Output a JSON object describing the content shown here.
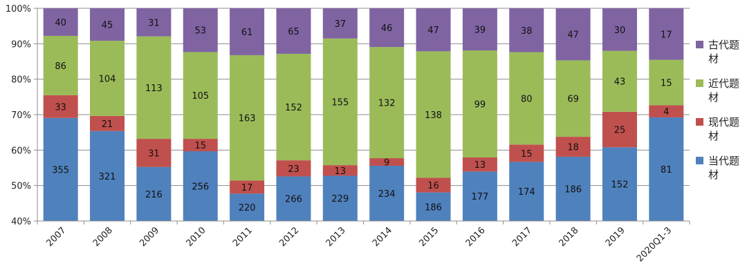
{
  "chart_data": {
    "type": "bar",
    "stacked": "percent",
    "categories": [
      "2007",
      "2008",
      "2009",
      "2010",
      "2011",
      "2012",
      "2013",
      "2014",
      "2015",
      "2016",
      "2017",
      "2018",
      "2019",
      "2020Q1-3"
    ],
    "series": [
      {
        "name": "当代题材",
        "color": "#4f81bd",
        "values": [
          355,
          321,
          216,
          256,
          220,
          266,
          229,
          234,
          186,
          177,
          174,
          186,
          152,
          81
        ]
      },
      {
        "name": "现代题材",
        "color": "#c0504d",
        "values": [
          33,
          21,
          31,
          15,
          17,
          23,
          13,
          9,
          16,
          13,
          15,
          18,
          25,
          4
        ]
      },
      {
        "name": "近代题材",
        "color": "#9bbb59",
        "values": [
          86,
          104,
          113,
          105,
          163,
          152,
          155,
          132,
          138,
          99,
          80,
          69,
          43,
          15
        ]
      },
      {
        "name": "古代题材",
        "color": "#8064a2",
        "values": [
          40,
          45,
          31,
          53,
          61,
          65,
          37,
          46,
          47,
          39,
          38,
          47,
          30,
          17
        ]
      }
    ],
    "ylim": [
      40,
      100
    ],
    "yticks": [
      40,
      50,
      60,
      70,
      80,
      90,
      100
    ],
    "ytick_labels": [
      "40%",
      "50%",
      "60%",
      "70%",
      "80%",
      "90%",
      "100%"
    ],
    "legend_position": "right",
    "gridlines": true,
    "title": "",
    "xlabel": "",
    "ylabel": ""
  }
}
